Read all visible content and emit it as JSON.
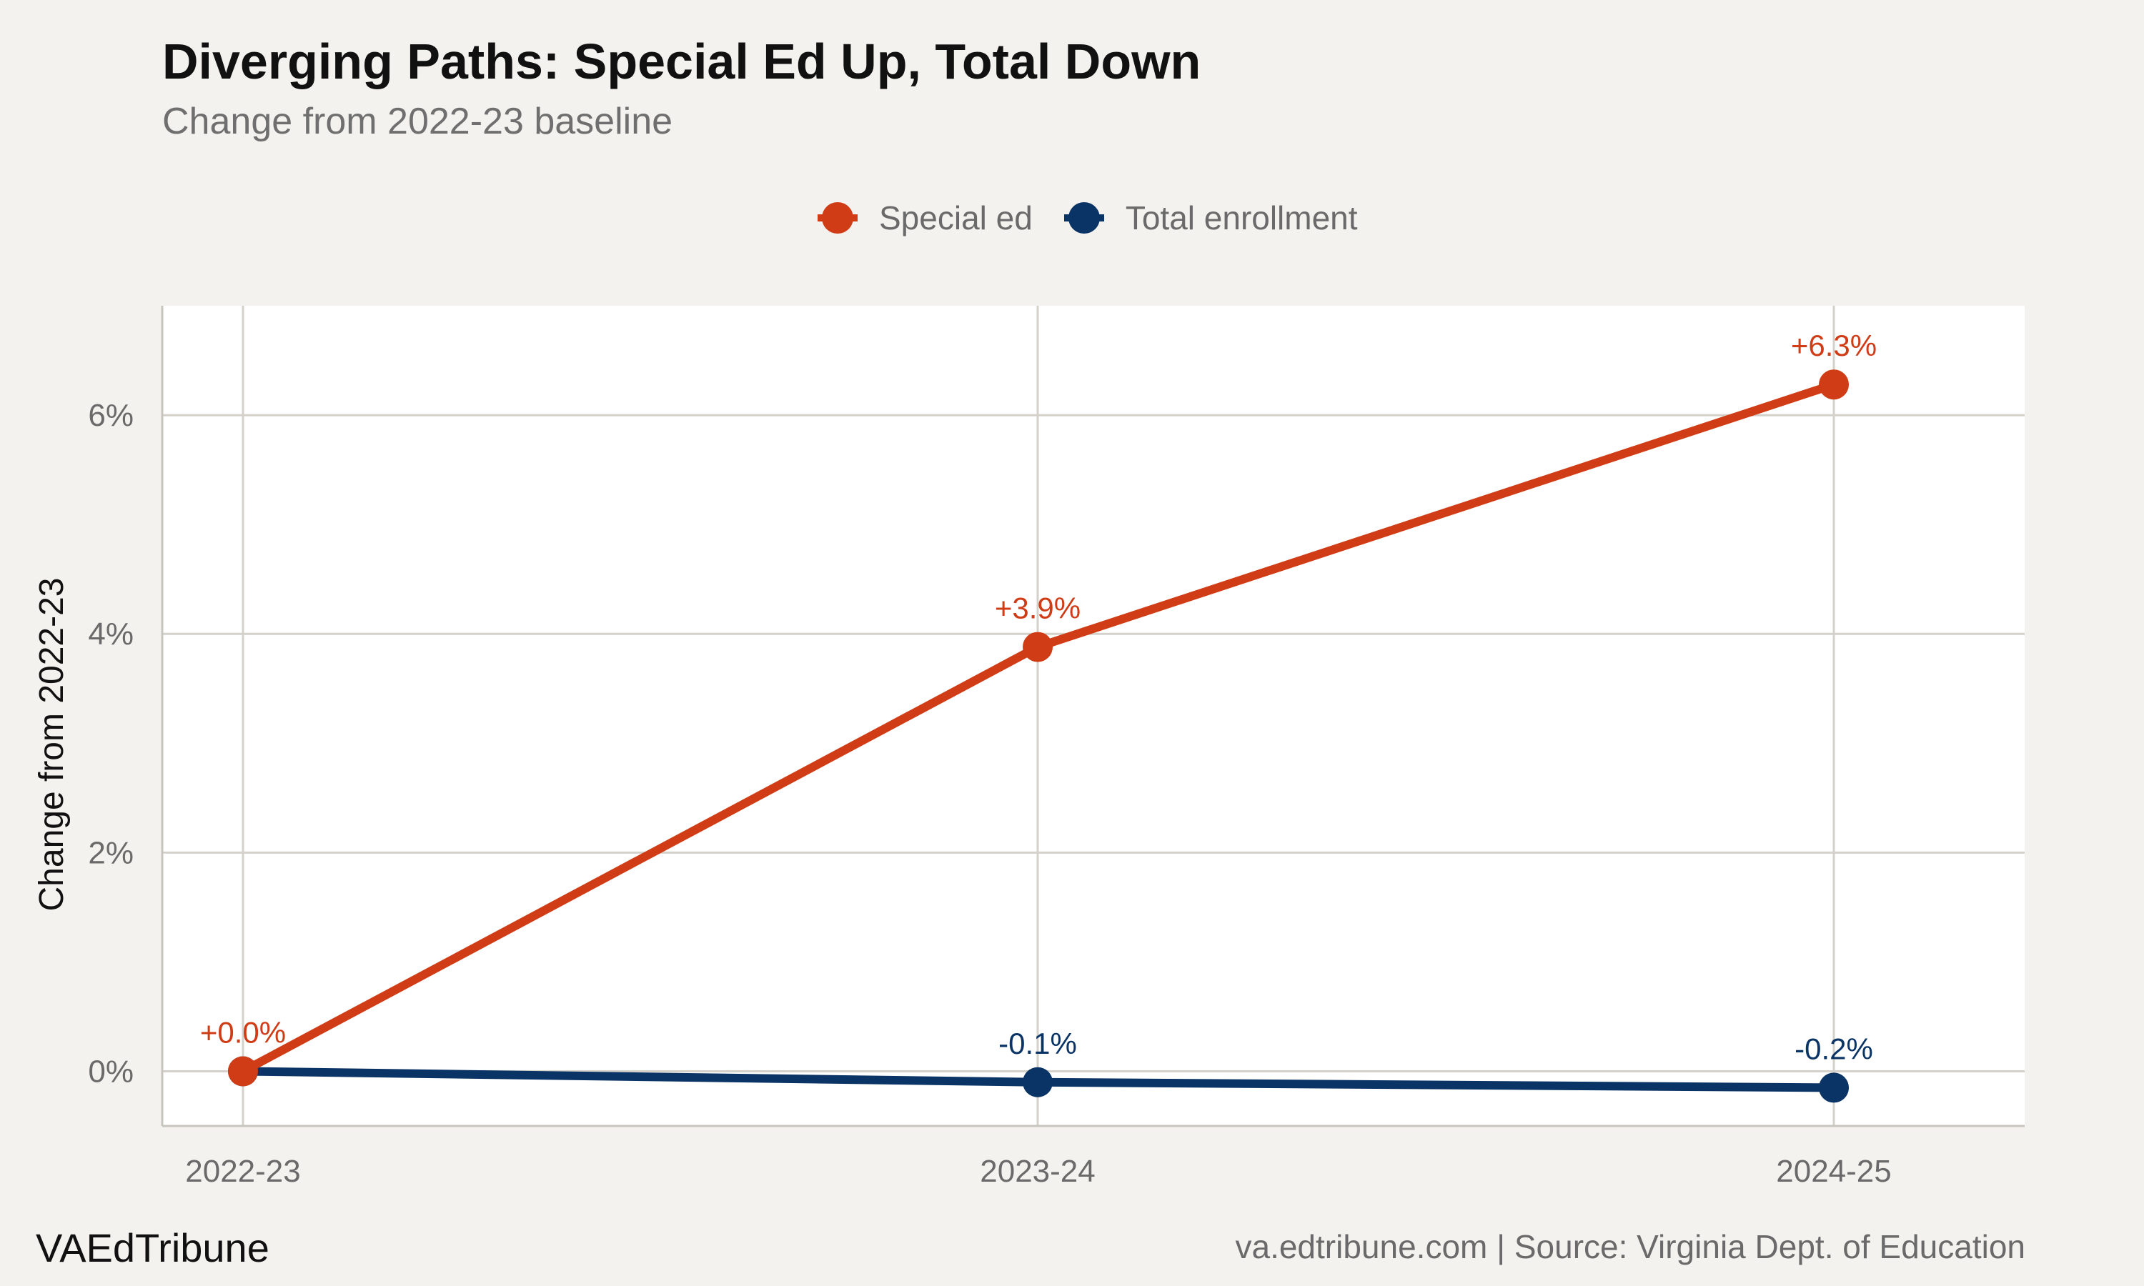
{
  "title": "Diverging Paths: Special Ed Up, Total Down",
  "subtitle": "Change from 2022-23 baseline",
  "brand": "VAEdTribune",
  "source": "va.edtribune.com | Source: Virginia Dept. of Education",
  "chart_data": {
    "type": "line",
    "title": "Diverging Paths: Special Ed Up, Total Down",
    "subtitle": "Change from 2022-23 baseline",
    "xlabel": "",
    "ylabel": "Change from 2022-23",
    "categories": [
      "2022-23",
      "2023-24",
      "2024-25"
    ],
    "y_ticks": [
      0,
      2,
      4,
      6
    ],
    "y_tick_labels": [
      "0%",
      "2%",
      "4%",
      "6%"
    ],
    "ylim": [
      -0.5,
      7.0
    ],
    "grid": true,
    "legend_position": "top",
    "series": [
      {
        "name": "Special ed",
        "color": "#d03c15",
        "values": [
          0.0,
          3.88,
          6.28
        ],
        "labels": [
          "+0.0%",
          "+3.9%",
          "+6.3%"
        ]
      },
      {
        "name": "Total enrollment",
        "color": "#0b3466",
        "values": [
          0.0,
          -0.1,
          -0.15
        ],
        "labels": [
          "",
          "-0.1%",
          "-0.2%"
        ]
      }
    ]
  }
}
